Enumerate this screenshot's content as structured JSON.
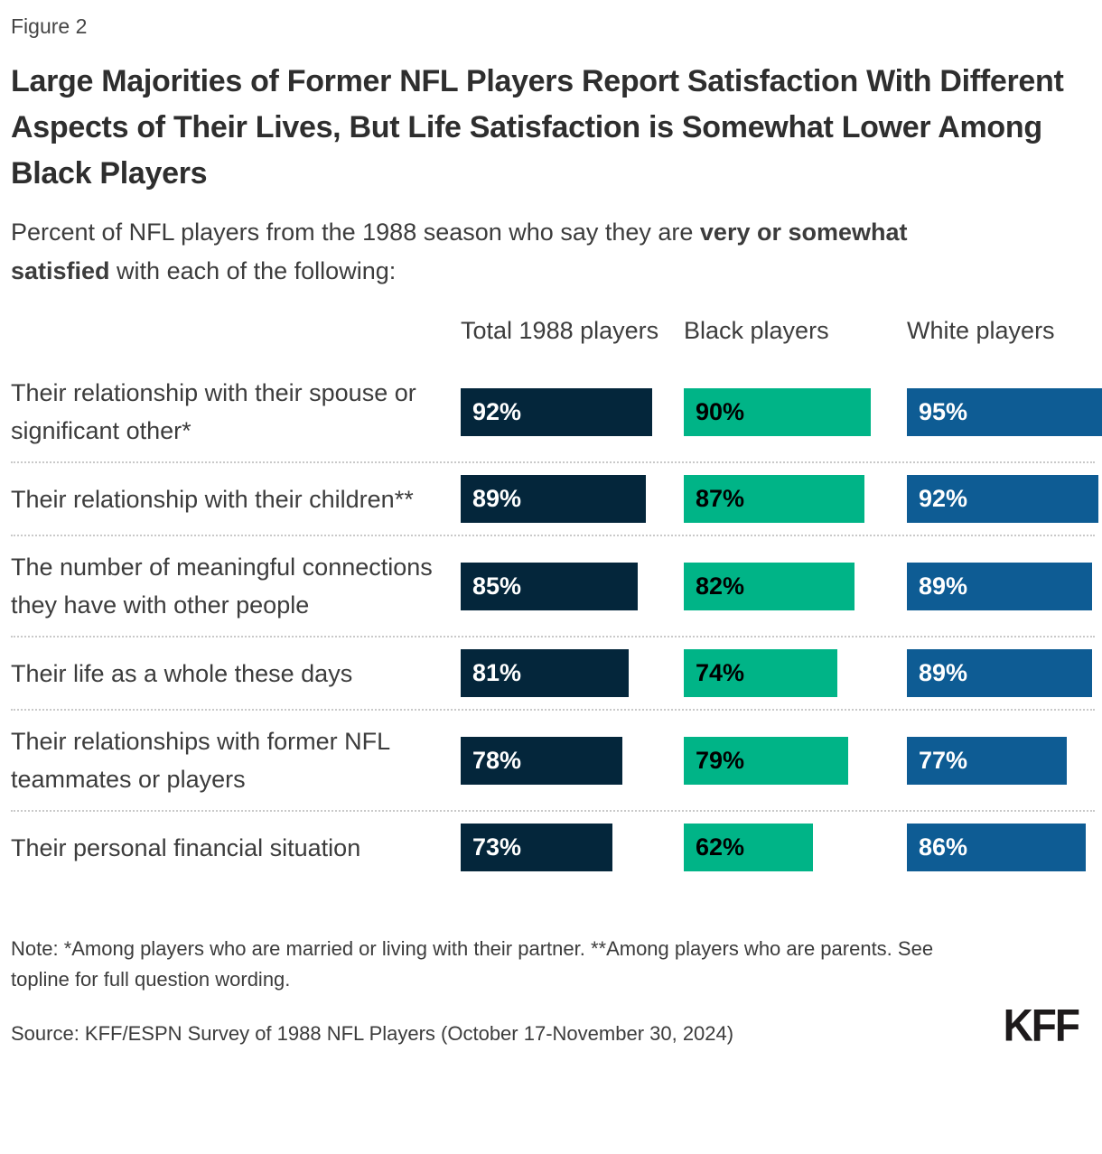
{
  "figure_label": "Figure 2",
  "title": "Large Majorities of Former NFL Players Report Satisfaction With Different Aspects of Their Lives, But Life Satisfaction is Somewhat Lower Among Black Players",
  "subtitle": {
    "prefix": "Percent of NFL players from the 1988 season who say they are ",
    "bold": "very or somewhat satisfied",
    "suffix": " with each of the following:"
  },
  "columns": [
    "Total 1988 players",
    "Black players",
    "White players"
  ],
  "colors": {
    "series": [
      "#04263b",
      "#00b487",
      "#0e5c94"
    ],
    "value_text": [
      "#ffffff",
      "#000000",
      "#ffffff"
    ]
  },
  "rows": [
    {
      "label": "Their relationship with their spouse or significant other*",
      "values": [
        92,
        90,
        95
      ],
      "display": [
        "92%",
        "90%",
        "95%"
      ]
    },
    {
      "label": "Their relationship with their children**",
      "values": [
        89,
        87,
        92
      ],
      "display": [
        "89%",
        "87%",
        "92%"
      ]
    },
    {
      "label": "The number of meaningful connections they have with other people",
      "values": [
        85,
        82,
        89
      ],
      "display": [
        "85%",
        "82%",
        "89%"
      ]
    },
    {
      "label": "Their life as a whole these days",
      "values": [
        81,
        74,
        89
      ],
      "display": [
        "81%",
        "74%",
        "89%"
      ]
    },
    {
      "label": "Their relationships with former NFL teammates or players",
      "values": [
        78,
        79,
        77
      ],
      "display": [
        "78%",
        "79%",
        "77%"
      ]
    },
    {
      "label": "Their personal financial situation",
      "values": [
        73,
        62,
        86
      ],
      "display": [
        "73%",
        "62%",
        "86%"
      ]
    }
  ],
  "note": "Note: *Among players who are married or living with their partner. **Among players who are parents. See topline for full question wording.",
  "source": "Source: KFF/ESPN Survey of 1988 NFL Players (October 17-November 30, 2024)",
  "logo": "KFF",
  "chart_data": {
    "type": "bar",
    "orientation": "horizontal",
    "title": "Large Majorities of Former NFL Players Report Satisfaction With Different Aspects of Their Lives, But Life Satisfaction is Somewhat Lower Among Black Players",
    "subtitle": "Percent of NFL players from the 1988 season who say they are very or somewhat satisfied with each of the following:",
    "categories": [
      "Their relationship with their spouse or significant other*",
      "Their relationship with their children**",
      "The number of meaningful connections they have with other people",
      "Their life as a whole these days",
      "Their relationships with former NFL teammates or players",
      "Their personal financial situation"
    ],
    "series": [
      {
        "name": "Total 1988 players",
        "color": "#04263b",
        "values": [
          92,
          89,
          85,
          81,
          78,
          73
        ]
      },
      {
        "name": "Black players",
        "color": "#00b487",
        "values": [
          90,
          87,
          82,
          74,
          79,
          62
        ]
      },
      {
        "name": "White players",
        "color": "#0e5c94",
        "values": [
          95,
          92,
          89,
          89,
          77,
          86
        ]
      }
    ],
    "value_format": "percent",
    "xlim": [
      0,
      100
    ],
    "grid": false,
    "legend_position": "column-headers",
    "note": "Note: *Among players who are married or living with their partner. **Among players who are parents. See topline for full question wording.",
    "source": "Source: KFF/ESPN Survey of 1988 NFL Players (October 17-November 30, 2024)"
  }
}
